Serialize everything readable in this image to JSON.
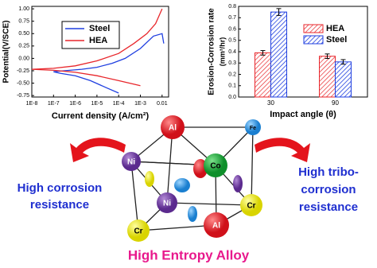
{
  "chart_data": [
    {
      "type": "line",
      "xscale": "log",
      "xlabel": "Current density (A/cm²)",
      "ylabel": "Potential(V/SCE)",
      "xlim": [
        1e-08,
        0.02
      ],
      "ylim": [
        -0.78,
        1.05
      ],
      "xticks": [
        {
          "value": 1e-08,
          "label": "1E-8"
        },
        {
          "value": 1e-07,
          "label": "1E-7"
        },
        {
          "value": 1e-06,
          "label": "1E-6"
        },
        {
          "value": 1e-05,
          "label": "1E-5"
        },
        {
          "value": 0.0001,
          "label": "1E-4"
        },
        {
          "value": 0.001,
          "label": "1E-3"
        },
        0.01
      ],
      "yticks": [
        -0.75,
        {
          "value": -0.5,
          "label": "-0.50"
        },
        -0.25,
        {
          "value": 0,
          "label": "0.00"
        },
        0.25,
        {
          "value": 0.5,
          "label": "0.50"
        },
        0.75,
        {
          "value": 1,
          "label": "1.00"
        }
      ],
      "legend": "top-left",
      "series": [
        {
          "name": "Steel",
          "color": "#1f3fe0",
          "x": [
            0.0001,
            3e-05,
            5e-06,
            1e-06,
            2e-07,
            1e-07,
            3e-07,
            2e-06,
            1e-05,
            5e-05,
            0.0002,
            0.001,
            0.004,
            0.01,
            0.012
          ],
          "values": [
            -0.7,
            -0.6,
            -0.45,
            -0.35,
            -0.3,
            -0.27,
            -0.25,
            -0.22,
            -0.18,
            -0.1,
            0.0,
            0.2,
            0.45,
            0.5,
            0.3
          ]
        },
        {
          "name": "HEA",
          "color": "#e8262b",
          "x": [
            0.001,
            0.0001,
            1e-05,
            1e-06,
            1e-07,
            1e-08,
            1e-07,
            1e-06,
            1e-05,
            0.0001,
            0.0005,
            0.002,
            0.005,
            0.008,
            0.01
          ],
          "values": [
            -0.55,
            -0.45,
            -0.35,
            -0.28,
            -0.24,
            -0.22,
            -0.2,
            -0.15,
            -0.05,
            0.1,
            0.3,
            0.5,
            0.7,
            0.9,
            1.0
          ]
        }
      ]
    },
    {
      "type": "bar",
      "xlabel": "Impact angle (θ)",
      "ylabel": "Erosion-Corrosion rate",
      "ylabel_unit": "(mm³/hr)",
      "categories": [
        "30",
        "90"
      ],
      "ylim": [
        0,
        0.8
      ],
      "yticks": [
        {
          "value": 0,
          "label": "0.0"
        },
        0.1,
        0.2,
        0.3,
        0.4,
        0.5,
        0.6,
        0.7,
        0.8
      ],
      "legend": "top-right",
      "series": [
        {
          "name": "HEA",
          "color": "#e8262b",
          "values": [
            0.39,
            0.36
          ],
          "errors": [
            0.02,
            0.02
          ]
        },
        {
          "name": "Steel",
          "color": "#1f3fe0",
          "values": [
            0.75,
            0.31
          ],
          "errors": [
            0.03,
            0.02
          ]
        }
      ]
    }
  ],
  "diagram": {
    "atoms": [
      "Al",
      "Fe",
      "Ni",
      "Co",
      "Ni",
      "Cr",
      "Cr",
      "Al"
    ],
    "left_text": [
      "High corrosion",
      "resistance"
    ],
    "right_text": [
      "High tribo-",
      "corrosion",
      "resistance"
    ],
    "caption": "High Entropy Alloy"
  }
}
